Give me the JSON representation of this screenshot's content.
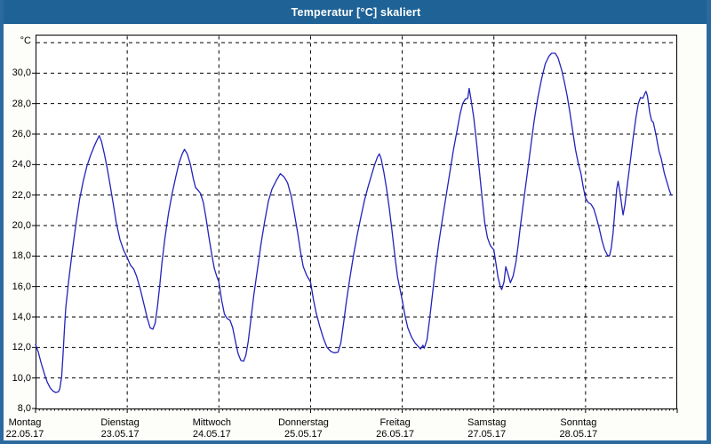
{
  "window": {
    "title": "Temperatur [°C] skaliert"
  },
  "colors": {
    "titlebar_bg": "#1f6396",
    "title_text": "#ffffff",
    "window_border": "#2b6a9f",
    "content_bg": "#fdfdfa",
    "plot_bg": "#ffffff",
    "grid": "#000000",
    "axis": "#000000",
    "line": "#2323bb"
  },
  "chart_data": {
    "type": "line",
    "title": "Temperatur [°C] skaliert",
    "y_unit_label": "°C",
    "y_axis": {
      "min": 8,
      "max": 32,
      "tick_step": 2,
      "tick_labels": [
        "8,0",
        "10,0",
        "12,0",
        "14,0",
        "16,0",
        "18,0",
        "20,0",
        "22,0",
        "24,0",
        "26,0",
        "28,0",
        "30,0"
      ],
      "grid": true,
      "top_gridline_unlabeled": 32
    },
    "x_axis": {
      "unit": "days",
      "hours_per_day": 24,
      "grid_at_day_boundaries": true,
      "days": [
        {
          "label": "Montag",
          "date": "22.05.17"
        },
        {
          "label": "Dienstag",
          "date": "23.05.17"
        },
        {
          "label": "Mittwoch",
          "date": "24.05.17"
        },
        {
          "label": "Donnerstag",
          "date": "25.05.17"
        },
        {
          "label": "Freitag",
          "date": "26.05.17"
        },
        {
          "label": "Samstag",
          "date": "27.05.17"
        },
        {
          "label": "Sonntag",
          "date": "28.05.17"
        }
      ]
    },
    "series": [
      {
        "name": "Temperatur",
        "color": "#2323bb",
        "x_unit": "day_fraction_from_monday_00h",
        "points": [
          [
            0.0,
            12.2
          ],
          [
            0.03,
            11.7
          ],
          [
            0.06,
            11.0
          ],
          [
            0.1,
            10.2
          ],
          [
            0.13,
            9.7
          ],
          [
            0.16,
            9.35
          ],
          [
            0.19,
            9.15
          ],
          [
            0.22,
            9.05
          ],
          [
            0.25,
            9.1
          ],
          [
            0.265,
            9.3
          ],
          [
            0.285,
            10.1
          ],
          [
            0.3,
            11.5
          ],
          [
            0.315,
            13.2
          ],
          [
            0.33,
            14.6
          ],
          [
            0.36,
            16.3
          ],
          [
            0.4,
            18.3
          ],
          [
            0.44,
            20.1
          ],
          [
            0.48,
            21.7
          ],
          [
            0.52,
            22.9
          ],
          [
            0.56,
            23.9
          ],
          [
            0.6,
            24.6
          ],
          [
            0.64,
            25.2
          ],
          [
            0.67,
            25.6
          ],
          [
            0.695,
            25.9
          ],
          [
            0.72,
            25.5
          ],
          [
            0.75,
            24.7
          ],
          [
            0.78,
            23.8
          ],
          [
            0.81,
            22.8
          ],
          [
            0.845,
            21.5
          ],
          [
            0.88,
            20.2
          ],
          [
            0.92,
            19.1
          ],
          [
            0.96,
            18.4
          ],
          [
            1.0,
            17.9
          ],
          [
            1.035,
            17.4
          ],
          [
            1.07,
            17.15
          ],
          [
            1.1,
            16.7
          ],
          [
            1.14,
            15.9
          ],
          [
            1.18,
            14.9
          ],
          [
            1.22,
            13.9
          ],
          [
            1.25,
            13.3
          ],
          [
            1.28,
            13.2
          ],
          [
            1.305,
            13.6
          ],
          [
            1.33,
            14.7
          ],
          [
            1.355,
            16.1
          ],
          [
            1.38,
            17.6
          ],
          [
            1.41,
            19.1
          ],
          [
            1.45,
            20.8
          ],
          [
            1.49,
            22.1
          ],
          [
            1.53,
            23.2
          ],
          [
            1.565,
            24.1
          ],
          [
            1.6,
            24.7
          ],
          [
            1.625,
            25.0
          ],
          [
            1.655,
            24.7
          ],
          [
            1.69,
            24.0
          ],
          [
            1.72,
            23.1
          ],
          [
            1.745,
            22.5
          ],
          [
            1.775,
            22.3
          ],
          [
            1.8,
            22.1
          ],
          [
            1.83,
            21.5
          ],
          [
            1.86,
            20.5
          ],
          [
            1.89,
            19.3
          ],
          [
            1.92,
            18.2
          ],
          [
            1.95,
            17.2
          ],
          [
            1.975,
            16.7
          ],
          [
            2.0,
            16.3
          ],
          [
            2.03,
            15.1
          ],
          [
            2.06,
            14.2
          ],
          [
            2.09,
            13.9
          ],
          [
            2.12,
            13.8
          ],
          [
            2.15,
            13.3
          ],
          [
            2.18,
            12.4
          ],
          [
            2.21,
            11.6
          ],
          [
            2.24,
            11.15
          ],
          [
            2.27,
            11.1
          ],
          [
            2.295,
            11.5
          ],
          [
            2.32,
            12.4
          ],
          [
            2.35,
            13.9
          ],
          [
            2.38,
            15.4
          ],
          [
            2.42,
            17.1
          ],
          [
            2.46,
            18.8
          ],
          [
            2.5,
            20.3
          ],
          [
            2.54,
            21.6
          ],
          [
            2.58,
            22.4
          ],
          [
            2.63,
            23.0
          ],
          [
            2.67,
            23.4
          ],
          [
            2.71,
            23.2
          ],
          [
            2.75,
            22.8
          ],
          [
            2.79,
            21.9
          ],
          [
            2.82,
            20.9
          ],
          [
            2.86,
            19.5
          ],
          [
            2.89,
            18.3
          ],
          [
            2.92,
            17.3
          ],
          [
            2.96,
            16.7
          ],
          [
            3.0,
            16.3
          ],
          [
            3.03,
            15.2
          ],
          [
            3.06,
            14.3
          ],
          [
            3.1,
            13.4
          ],
          [
            3.14,
            12.6
          ],
          [
            3.18,
            12.0
          ],
          [
            3.22,
            11.75
          ],
          [
            3.26,
            11.65
          ],
          [
            3.3,
            11.7
          ],
          [
            3.33,
            12.3
          ],
          [
            3.36,
            13.6
          ],
          [
            3.39,
            15.0
          ],
          [
            3.43,
            16.6
          ],
          [
            3.47,
            18.1
          ],
          [
            3.51,
            19.4
          ],
          [
            3.55,
            20.6
          ],
          [
            3.59,
            21.7
          ],
          [
            3.63,
            22.6
          ],
          [
            3.67,
            23.4
          ],
          [
            3.7,
            24.0
          ],
          [
            3.73,
            24.5
          ],
          [
            3.75,
            24.7
          ],
          [
            3.77,
            24.4
          ],
          [
            3.8,
            23.5
          ],
          [
            3.83,
            22.4
          ],
          [
            3.86,
            21.1
          ],
          [
            3.89,
            19.6
          ],
          [
            3.92,
            18.0
          ],
          [
            3.95,
            16.6
          ],
          [
            3.98,
            15.7
          ],
          [
            4.0,
            15.1
          ],
          [
            4.03,
            14.1
          ],
          [
            4.06,
            13.3
          ],
          [
            4.1,
            12.7
          ],
          [
            4.14,
            12.3
          ],
          [
            4.17,
            12.1
          ],
          [
            4.2,
            11.9
          ],
          [
            4.225,
            12.15
          ],
          [
            4.24,
            11.95
          ],
          [
            4.27,
            12.5
          ],
          [
            4.3,
            13.9
          ],
          [
            4.33,
            15.5
          ],
          [
            4.36,
            17.1
          ],
          [
            4.4,
            18.9
          ],
          [
            4.44,
            20.5
          ],
          [
            4.48,
            22.0
          ],
          [
            4.52,
            23.5
          ],
          [
            4.56,
            25.0
          ],
          [
            4.6,
            26.3
          ],
          [
            4.63,
            27.3
          ],
          [
            4.66,
            28.0
          ],
          [
            4.69,
            28.3
          ],
          [
            4.715,
            28.35
          ],
          [
            4.73,
            29.0
          ],
          [
            4.75,
            28.3
          ],
          [
            4.78,
            27.1
          ],
          [
            4.81,
            25.5
          ],
          [
            4.84,
            23.7
          ],
          [
            4.87,
            21.9
          ],
          [
            4.9,
            20.2
          ],
          [
            4.93,
            19.2
          ],
          [
            4.96,
            18.7
          ],
          [
            5.0,
            18.4
          ],
          [
            5.02,
            17.6
          ],
          [
            5.045,
            16.6
          ],
          [
            5.07,
            16.0
          ],
          [
            5.085,
            15.8
          ],
          [
            5.11,
            16.3
          ],
          [
            5.13,
            17.3
          ],
          [
            5.155,
            16.8
          ],
          [
            5.18,
            16.25
          ],
          [
            5.21,
            16.7
          ],
          [
            5.24,
            17.6
          ],
          [
            5.265,
            18.7
          ],
          [
            5.29,
            20.0
          ],
          [
            5.32,
            21.4
          ],
          [
            5.36,
            23.2
          ],
          [
            5.4,
            25.1
          ],
          [
            5.44,
            26.9
          ],
          [
            5.48,
            28.4
          ],
          [
            5.52,
            29.6
          ],
          [
            5.56,
            30.6
          ],
          [
            5.6,
            31.1
          ],
          [
            5.63,
            31.3
          ],
          [
            5.67,
            31.3
          ],
          [
            5.7,
            31.0
          ],
          [
            5.74,
            30.2
          ],
          [
            5.77,
            29.4
          ],
          [
            5.8,
            28.5
          ],
          [
            5.83,
            27.4
          ],
          [
            5.86,
            26.2
          ],
          [
            5.89,
            25.0
          ],
          [
            5.92,
            24.1
          ],
          [
            5.95,
            23.4
          ],
          [
            5.975,
            22.5
          ],
          [
            6.0,
            21.8
          ],
          [
            6.03,
            21.5
          ],
          [
            6.06,
            21.4
          ],
          [
            6.09,
            21.1
          ],
          [
            6.12,
            20.5
          ],
          [
            6.15,
            19.8
          ],
          [
            6.18,
            19.0
          ],
          [
            6.21,
            18.4
          ],
          [
            6.24,
            18.05
          ],
          [
            6.26,
            18.0
          ],
          [
            6.28,
            18.5
          ],
          [
            6.3,
            19.5
          ],
          [
            6.32,
            21.0
          ],
          [
            6.34,
            22.4
          ],
          [
            6.355,
            22.9
          ],
          [
            6.375,
            22.2
          ],
          [
            6.4,
            21.1
          ],
          [
            6.41,
            20.7
          ],
          [
            6.43,
            21.4
          ],
          [
            6.46,
            22.9
          ],
          [
            6.49,
            24.3
          ],
          [
            6.52,
            25.8
          ],
          [
            6.55,
            27.1
          ],
          [
            6.575,
            28.0
          ],
          [
            6.6,
            28.4
          ],
          [
            6.625,
            28.35
          ],
          [
            6.65,
            28.7
          ],
          [
            6.66,
            28.8
          ],
          [
            6.675,
            28.5
          ],
          [
            6.7,
            27.4
          ],
          [
            6.72,
            26.9
          ],
          [
            6.74,
            26.75
          ],
          [
            6.77,
            25.9
          ],
          [
            6.8,
            24.9
          ],
          [
            6.825,
            24.4
          ],
          [
            6.86,
            23.4
          ],
          [
            6.89,
            22.8
          ],
          [
            6.915,
            22.3
          ],
          [
            6.935,
            22.0
          ]
        ]
      }
    ],
    "day_min_max_readings": {
      "Montag": {
        "min": 9.1,
        "max": 25.9
      },
      "Dienstag": {
        "min": 13.2,
        "max": 25.0
      },
      "Mittwoch": {
        "min": 11.1,
        "max": 23.4
      },
      "Donnerstag": {
        "min": 11.6,
        "max": 24.7
      },
      "Freitag": {
        "min": 11.9,
        "max": 29.0
      },
      "Samstag": {
        "min": 15.8,
        "max": 31.3
      },
      "Sonntag": {
        "min": 18.0,
        "max": 28.8
      }
    },
    "legend": "none"
  }
}
